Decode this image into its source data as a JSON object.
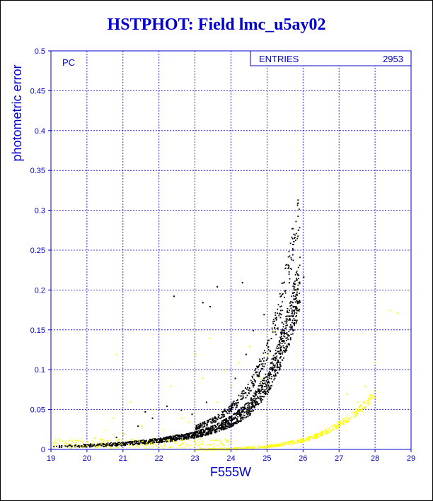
{
  "page": {
    "title": "HSTPHOT: Field lmc_u5ay02"
  },
  "stats_box": {
    "label": "ENTRIES",
    "value": "2953"
  },
  "panel_label": "PC",
  "chart_data": {
    "type": "scatter",
    "title": "HSTPHOT: Field lmc_u5ay02",
    "xlabel": "F555W",
    "ylabel": "photometric error",
    "xlim": [
      19,
      29
    ],
    "ylim": [
      0,
      0.5
    ],
    "grid": true,
    "x_ticks": [
      19,
      20,
      21,
      22,
      23,
      24,
      25,
      26,
      27,
      28,
      29
    ],
    "y_ticks": [
      0,
      0.05,
      0.1,
      0.15,
      0.2,
      0.25,
      0.3,
      0.35,
      0.4,
      0.45,
      0.5
    ],
    "series": [
      {
        "color": "#000000",
        "curve": {
          "x": [
            19.0,
            20.0,
            21.0,
            22.0,
            23.0,
            23.5,
            24.0,
            24.5,
            25.0,
            25.3,
            25.6,
            25.9
          ],
          "y": [
            0.004,
            0.005,
            0.007,
            0.011,
            0.018,
            0.024,
            0.034,
            0.05,
            0.08,
            0.11,
            0.15,
            0.2
          ]
        },
        "points": [
          [
            20.8,
            0.016
          ],
          [
            21.4,
            0.03
          ],
          [
            21.6,
            0.048
          ],
          [
            22.2,
            0.055
          ],
          [
            22.4,
            0.193
          ],
          [
            23.2,
            0.185
          ],
          [
            23.4,
            0.18
          ],
          [
            23.6,
            0.205
          ],
          [
            24.3,
            0.21
          ],
          [
            24.6,
            0.15
          ],
          [
            24.9,
            0.17
          ],
          [
            22.9,
            0.045
          ],
          [
            23.3,
            0.06
          ],
          [
            24.1,
            0.09
          ],
          [
            24.4,
            0.12
          ],
          [
            24.7,
            0.105
          ],
          [
            25.1,
            0.14
          ],
          [
            25.4,
            0.16
          ],
          [
            25.6,
            0.21
          ],
          [
            25.8,
            0.215
          ],
          [
            26.0,
            0.217
          ],
          [
            21.0,
            0.02
          ],
          [
            21.8,
            0.04
          ],
          [
            22.6,
            0.05
          ]
        ]
      },
      {
        "color": "#ffff00",
        "curve": {
          "x": [
            23.0,
            24.0,
            25.0,
            26.0,
            26.5,
            27.0,
            27.5,
            28.0
          ],
          "y": [
            0.0,
            0.001,
            0.004,
            0.012,
            0.02,
            0.032,
            0.048,
            0.07
          ]
        },
        "points": [
          [
            19.1,
            0.01
          ],
          [
            19.5,
            0.012
          ],
          [
            20.2,
            0.015
          ],
          [
            20.5,
            0.025
          ],
          [
            20.7,
            0.04
          ],
          [
            20.8,
            0.12
          ],
          [
            21.0,
            0.02
          ],
          [
            21.2,
            0.06
          ],
          [
            21.5,
            0.03
          ],
          [
            21.8,
            0.05
          ],
          [
            22.1,
            0.025
          ],
          [
            22.3,
            0.08
          ],
          [
            22.6,
            0.04
          ],
          [
            22.8,
            0.035
          ],
          [
            23.0,
            0.12
          ],
          [
            23.2,
            0.09
          ],
          [
            23.4,
            0.14
          ],
          [
            23.6,
            0.06
          ],
          [
            23.8,
            0.1
          ],
          [
            24.0,
            0.08
          ],
          [
            24.2,
            0.11
          ],
          [
            24.5,
            0.13
          ],
          [
            24.8,
            0.09
          ],
          [
            25.0,
            0.12
          ],
          [
            25.2,
            0.15
          ],
          [
            27.2,
            0.07
          ],
          [
            27.5,
            0.06
          ],
          [
            27.7,
            0.08
          ],
          [
            28.0,
            0.11
          ],
          [
            28.4,
            0.175
          ],
          [
            28.6,
            0.172
          ]
        ]
      }
    ]
  }
}
